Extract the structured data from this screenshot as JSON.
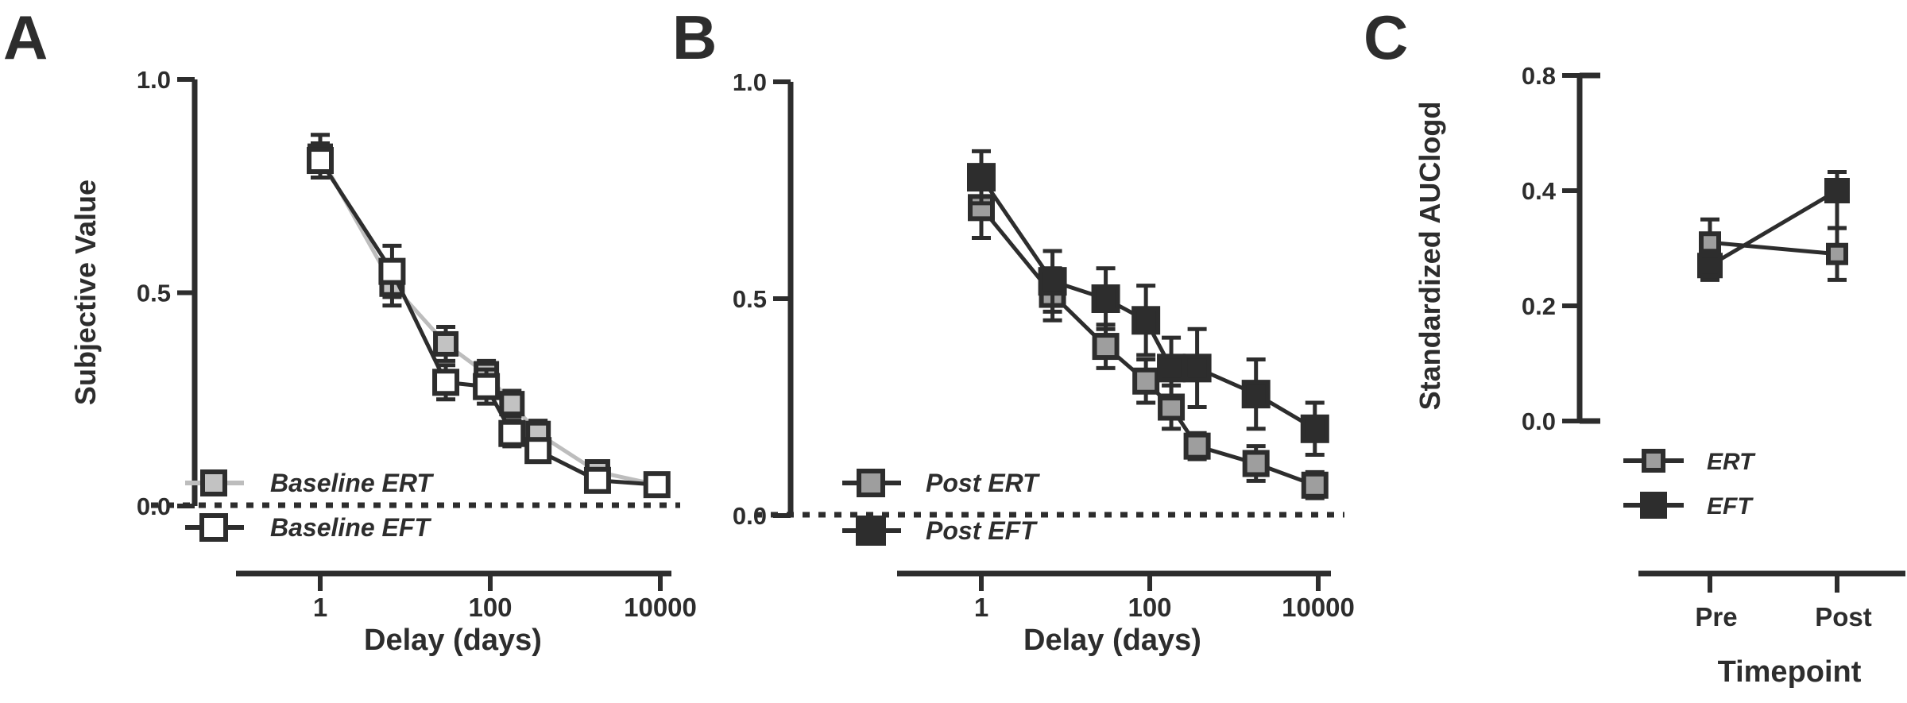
{
  "figure": {
    "background": "#ffffff",
    "ink_color": "#2d2d2d",
    "gray_marker_color": "#9e9e9e",
    "light_gray_line_color": "#bdbdbd",
    "panel_letters": [
      "A",
      "B",
      "C"
    ]
  },
  "chart_data": [
    {
      "type": "line",
      "panel_label": "A",
      "title": "",
      "xlabel": "Delay (days)",
      "ylabel": "Subjective Value",
      "x_scale": "log",
      "x": [
        1,
        7,
        30,
        90,
        180,
        365,
        1825,
        9125
      ],
      "x_tick_labels": [
        "1",
        "100",
        "10000"
      ],
      "x_tick_values": [
        1,
        100,
        10000
      ],
      "y_tick_labels": [
        "0.0",
        "0.5",
        "1.0"
      ],
      "y_tick_values": [
        0,
        0.5,
        1.0
      ],
      "ylim": [
        0,
        1
      ],
      "zero_line": "dotted",
      "grid": "off",
      "legend_position": "inside-bottom-left",
      "series": [
        {
          "name": "Baseline ERT",
          "marker": "gray-filled-square",
          "marker_fill": "#c2c2c2",
          "line_color": "#bdbdbd",
          "values": [
            0.82,
            0.52,
            0.38,
            0.31,
            0.24,
            0.17,
            0.08,
            0.05
          ],
          "errors": [
            0.05,
            0.05,
            0.04,
            0.03,
            0.03,
            0.03,
            0.02,
            0.01
          ]
        },
        {
          "name": "Baseline EFT",
          "marker": "open-square",
          "marker_fill": "#ffffff",
          "line_color": "#2d2d2d",
          "values": [
            0.81,
            0.55,
            0.29,
            0.28,
            0.17,
            0.13,
            0.06,
            0.05
          ],
          "errors": [
            0.04,
            0.06,
            0.04,
            0.04,
            0.03,
            0.02,
            0.015,
            0.01
          ]
        }
      ]
    },
    {
      "type": "line",
      "panel_label": "B",
      "title": "",
      "xlabel": "Delay (days)",
      "ylabel": "",
      "x_scale": "log",
      "x": [
        1,
        7,
        30,
        90,
        180,
        365,
        1825,
        9125
      ],
      "x_tick_labels": [
        "1",
        "100",
        "10000"
      ],
      "x_tick_values": [
        1,
        100,
        10000
      ],
      "y_tick_labels": [
        "0.0",
        "0.5",
        "1.0"
      ],
      "y_tick_values": [
        0,
        0.5,
        1.0
      ],
      "ylim": [
        0,
        1
      ],
      "zero_line": "dotted",
      "grid": "off",
      "legend_position": "inside-bottom-left",
      "series": [
        {
          "name": "Post ERT",
          "marker": "gray-filled-square",
          "marker_fill": "#9e9e9e",
          "line_color": "#2d2d2d",
          "values": [
            0.71,
            0.51,
            0.39,
            0.31,
            0.25,
            0.16,
            0.12,
            0.07
          ],
          "errors": [
            0.07,
            0.06,
            0.05,
            0.05,
            0.05,
            0.03,
            0.04,
            0.03
          ]
        },
        {
          "name": "Post EFT",
          "marker": "black-filled-square",
          "marker_fill": "#2d2d2d",
          "line_color": "#2d2d2d",
          "values": [
            0.78,
            0.54,
            0.5,
            0.45,
            0.34,
            0.34,
            0.28,
            0.2
          ],
          "errors": [
            0.06,
            0.07,
            0.07,
            0.08,
            0.07,
            0.09,
            0.08,
            0.06
          ]
        }
      ]
    },
    {
      "type": "line",
      "panel_label": "C",
      "title": "",
      "xlabel": "Timepoint",
      "ylabel": "Standardized AUClogd",
      "x_scale": "categorical",
      "categories": [
        "Pre",
        "Post"
      ],
      "y_tick_labels": [
        "0.0",
        "0.2",
        "0.4",
        "0.8"
      ],
      "y_tick_values": [
        0,
        0.2,
        0.4,
        0.8
      ],
      "ylim": [
        0,
        0.8
      ],
      "grid": "off",
      "legend_position": "inside-bottom-left",
      "series": [
        {
          "name": "ERT",
          "marker": "gray-filled-square",
          "marker_fill": "#9e9e9e",
          "line_color": "#2d2d2d",
          "values": [
            0.31,
            0.29
          ],
          "errors": [
            0.04,
            0.045
          ]
        },
        {
          "name": "EFT",
          "marker": "black-filled-square",
          "marker_fill": "#2d2d2d",
          "line_color": "#2d2d2d",
          "values": [
            0.27,
            0.4
          ],
          "errors": [
            0.025,
            0.065
          ]
        }
      ]
    }
  ]
}
